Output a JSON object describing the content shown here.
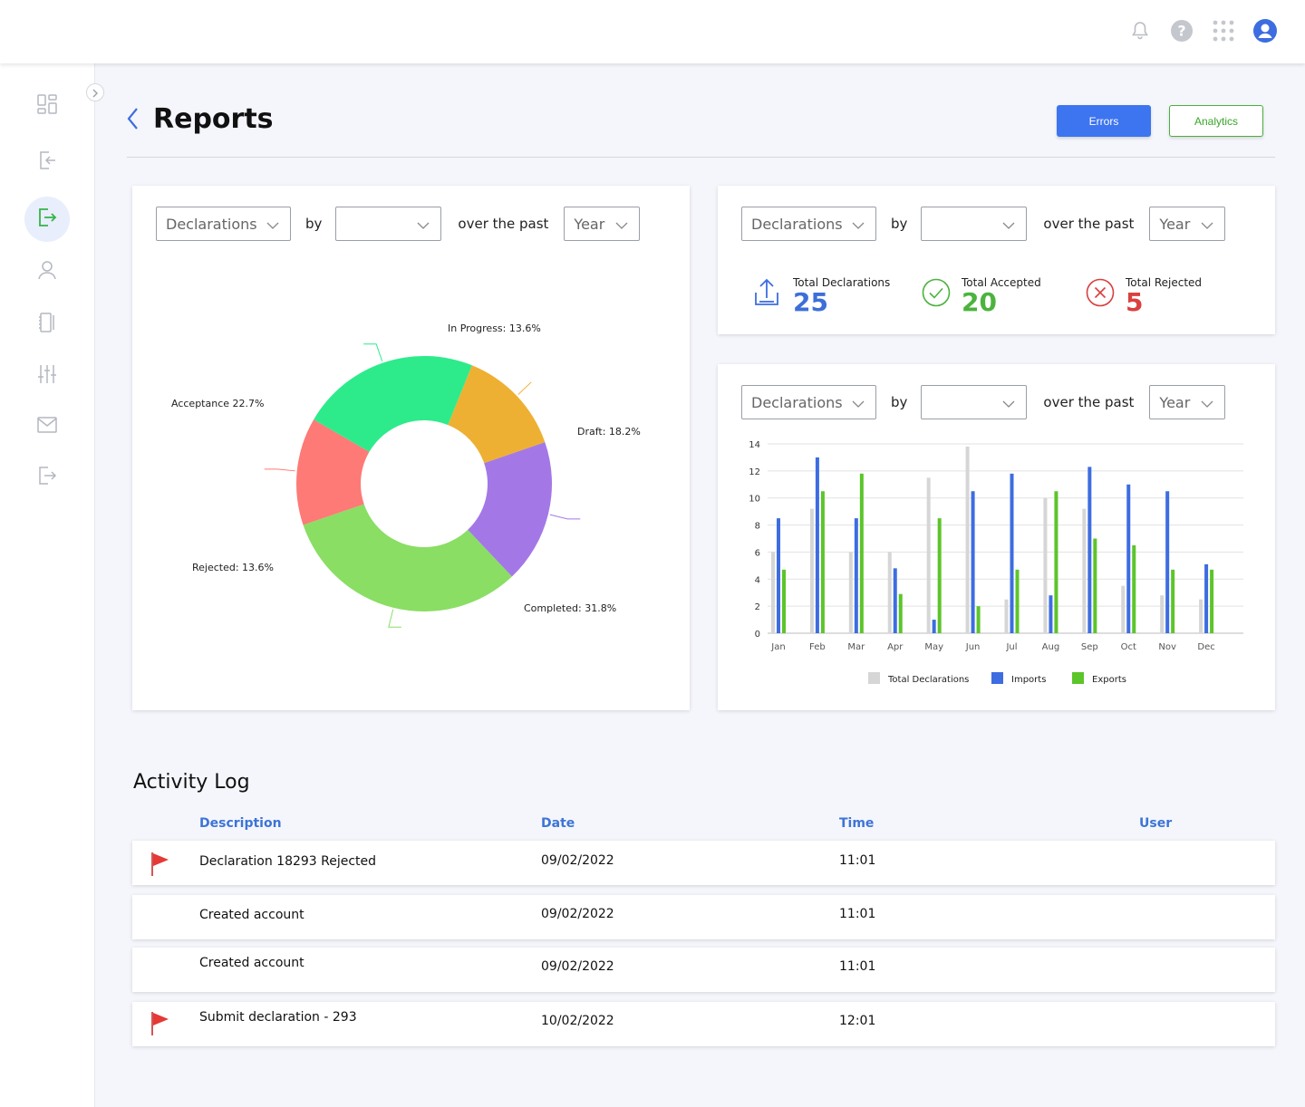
{
  "header": {
    "title": "Reports",
    "errors_label": "Errors",
    "analytics_label": "Analytics"
  },
  "filters": {
    "metric": "Declarations",
    "by_label": "by",
    "by_value": "",
    "over_label": "over the past",
    "period": "Year"
  },
  "sidebar": {
    "items": [
      "dashboard",
      "import",
      "export",
      "users",
      "documents",
      "settings",
      "messages",
      "logout"
    ],
    "active": "export"
  },
  "stats": [
    {
      "label": "Total Declarations",
      "value": "25",
      "color": "#3d6fd8",
      "icon": "upload-icon"
    },
    {
      "label": "Total Accepted",
      "value": "20",
      "color": "#4cb33e",
      "icon": "check-circle-icon"
    },
    {
      "label": "Total Rejected",
      "value": "5",
      "color": "#d94040",
      "icon": "x-circle-icon"
    }
  ],
  "chart_data": [
    {
      "type": "pie",
      "donut": true,
      "slices": [
        {
          "label": "In Progress: 13.6%",
          "value": 13.6,
          "color": "#eeb033"
        },
        {
          "label": "Draft: 18.2%",
          "value": 18.2,
          "color": "#a378e6"
        },
        {
          "label": "Completed: 31.8%",
          "value": 31.8,
          "color": "#89de63"
        },
        {
          "label": "Rejected: 13.6%",
          "value": 13.6,
          "color": "#fd7a76"
        },
        {
          "label": "Acceptance 22.7%",
          "value": 22.7,
          "color": "#2deb8b"
        }
      ]
    },
    {
      "type": "bar",
      "categories": [
        "Jan",
        "Feb",
        "Mar",
        "Apr",
        "May",
        "Jun",
        "Jul",
        "Aug",
        "Sep",
        "Oct",
        "Nov",
        "Dec"
      ],
      "ylim": [
        0,
        14
      ],
      "yticks": [
        0,
        2,
        4,
        6,
        8,
        10,
        12,
        14
      ],
      "grid": true,
      "legend_position": "bottom",
      "series": [
        {
          "name": "Total Declarations",
          "color": "#d6d6d6",
          "values": [
            6,
            9.2,
            6,
            6,
            11.5,
            13.8,
            2.5,
            10,
            9.2,
            3.5,
            2.8,
            2.5
          ]
        },
        {
          "name": "Imports",
          "color": "#3d6de0",
          "values": [
            8.5,
            13,
            8.5,
            4.8,
            1,
            10.5,
            11.8,
            2.8,
            12.3,
            11,
            10.5,
            5.1
          ]
        },
        {
          "name": "Exports",
          "color": "#5cc52a",
          "values": [
            4.7,
            10.5,
            11.8,
            2.9,
            8.5,
            2,
            4.7,
            10.5,
            7,
            6.5,
            4.7,
            4.7
          ]
        }
      ]
    }
  ],
  "activity_log": {
    "title": "Activity Log",
    "columns": {
      "description": "Description",
      "date": "Date",
      "time": "Time",
      "user": "User"
    },
    "rows": [
      {
        "description": "Declaration 18293 Rejected",
        "date": "09/02/2022",
        "time": "11:01",
        "user": "",
        "flagged": true
      },
      {
        "description": "Created account",
        "date": "09/02/2022",
        "time": "11:01",
        "user": "",
        "flagged": false
      },
      {
        "description": "Created account",
        "date": "09/02/2022",
        "time": "11:01",
        "user": "",
        "flagged": false
      },
      {
        "description": "Submit declaration - 293",
        "date": "10/02/2022",
        "time": "12:01",
        "user": "",
        "flagged": true
      }
    ]
  }
}
